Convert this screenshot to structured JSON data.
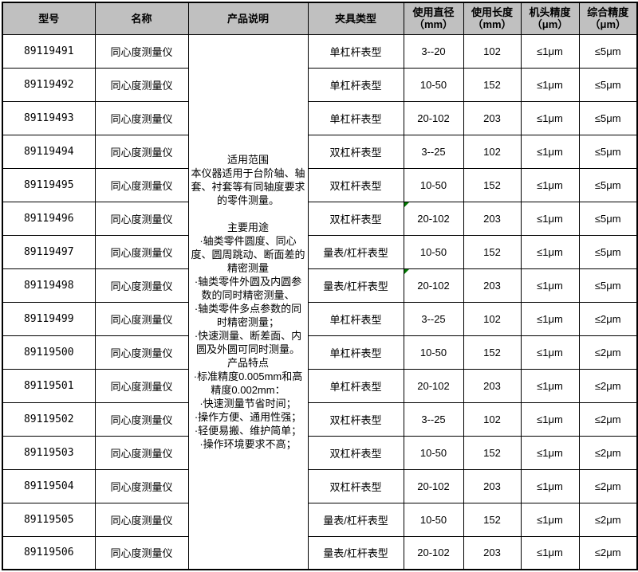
{
  "table": {
    "colors": {
      "header_bg": "#c0c0c0",
      "border": "#000000",
      "corner_marker_green": "#007700"
    },
    "headers": [
      {
        "label": "型号",
        "unit": ""
      },
      {
        "label": "名称",
        "unit": ""
      },
      {
        "label": "产品说明",
        "unit": ""
      },
      {
        "label": "夹具类型",
        "unit": ""
      },
      {
        "label": "使用直径",
        "unit": "（mm）"
      },
      {
        "label": "使用长度",
        "unit": "（mm）"
      },
      {
        "label": "机头精度",
        "unit": "（μm）"
      },
      {
        "label": "综合精度",
        "unit": "（μm）"
      }
    ],
    "description": {
      "paragraphs": [
        "适用范围",
        "本仪器适用于台阶轴、轴套、衬套等有同轴度要求的零件测量。",
        "",
        "主要用途",
        "·轴类零件圆度、同心度、圆周跳动、断面差的精密测量",
        "·轴类零件外圆及内圆参数的同时精密测量、",
        "·轴类零件多点参数的同时精密测量；",
        "·快速测量、断差面、内圆及外圆可同时测量。",
        "产品特点",
        "·标准精度0.005mm和高精度0.002mm：",
        "·快速测量节省时间；",
        "·操作方便、通用性强；",
        "·轻便易搬、维护简单；",
        "·操作环境要求不高；"
      ]
    },
    "rows": [
      {
        "model": "89119491",
        "name": "同心度测量仪",
        "fixture": "单杠杆表型",
        "diameter": "3--20",
        "length": "102",
        "head_precision": "≤1μm",
        "overall_precision": "≤5μm",
        "corner_marker": false
      },
      {
        "model": "89119492",
        "name": "同心度测量仪",
        "fixture": "单杠杆表型",
        "diameter": "10-50",
        "length": "152",
        "head_precision": "≤1μm",
        "overall_precision": "≤5μm",
        "corner_marker": false
      },
      {
        "model": "89119493",
        "name": "同心度测量仪",
        "fixture": "单杠杆表型",
        "diameter": "20-102",
        "length": "203",
        "head_precision": "≤1μm",
        "overall_precision": "≤5μm",
        "corner_marker": false
      },
      {
        "model": "89119494",
        "name": "同心度测量仪",
        "fixture": "双杠杆表型",
        "diameter": "3--25",
        "length": "102",
        "head_precision": "≤1μm",
        "overall_precision": "≤5μm",
        "corner_marker": false
      },
      {
        "model": "89119495",
        "name": "同心度测量仪",
        "fixture": "双杠杆表型",
        "diameter": "10-50",
        "length": "152",
        "head_precision": "≤1μm",
        "overall_precision": "≤5μm",
        "corner_marker": false
      },
      {
        "model": "89119496",
        "name": "同心度测量仪",
        "fixture": "双杠杆表型",
        "diameter": "20-102",
        "length": "203",
        "head_precision": "≤1μm",
        "overall_precision": "≤5μm",
        "corner_marker": true
      },
      {
        "model": "89119497",
        "name": "同心度测量仪",
        "fixture": "量表/杠杆表型",
        "diameter": "10-50",
        "length": "152",
        "head_precision": "≤1μm",
        "overall_precision": "≤5μm",
        "corner_marker": false
      },
      {
        "model": "89119498",
        "name": "同心度测量仪",
        "fixture": "量表/杠杆表型",
        "diameter": "20-102",
        "length": "203",
        "head_precision": "≤1μm",
        "overall_precision": "≤5μm",
        "corner_marker": true
      },
      {
        "model": "89119499",
        "name": "同心度测量仪",
        "fixture": "单杠杆表型",
        "diameter": "3--25",
        "length": "102",
        "head_precision": "≤1μm",
        "overall_precision": "≤2μm",
        "corner_marker": false
      },
      {
        "model": "89119500",
        "name": "同心度测量仪",
        "fixture": "单杠杆表型",
        "diameter": "10-50",
        "length": "152",
        "head_precision": "≤1μm",
        "overall_precision": "≤2μm",
        "corner_marker": false
      },
      {
        "model": "89119501",
        "name": "同心度测量仪",
        "fixture": "单杠杆表型",
        "diameter": "20-102",
        "length": "203",
        "head_precision": "≤1μm",
        "overall_precision": "≤2μm",
        "corner_marker": false
      },
      {
        "model": "89119502",
        "name": "同心度测量仪",
        "fixture": "双杠杆表型",
        "diameter": "3--25",
        "length": "102",
        "head_precision": "≤1μm",
        "overall_precision": "≤2μm",
        "corner_marker": false
      },
      {
        "model": "89119503",
        "name": "同心度测量仪",
        "fixture": "双杠杆表型",
        "diameter": "10-50",
        "length": "152",
        "head_precision": "≤1μm",
        "overall_precision": "≤2μm",
        "corner_marker": false
      },
      {
        "model": "89119504",
        "name": "同心度测量仪",
        "fixture": "双杠杆表型",
        "diameter": "20-102",
        "length": "203",
        "head_precision": "≤1μm",
        "overall_precision": "≤2μm",
        "corner_marker": false
      },
      {
        "model": "89119505",
        "name": "同心度测量仪",
        "fixture": "量表/杠杆表型",
        "diameter": "10-50",
        "length": "152",
        "head_precision": "≤1μm",
        "overall_precision": "≤2μm",
        "corner_marker": false
      },
      {
        "model": "89119506",
        "name": "同心度测量仪",
        "fixture": "量表/杠杆表型",
        "diameter": "20-102",
        "length": "203",
        "head_precision": "≤1μm",
        "overall_precision": "≤2μm",
        "corner_marker": false
      }
    ]
  }
}
